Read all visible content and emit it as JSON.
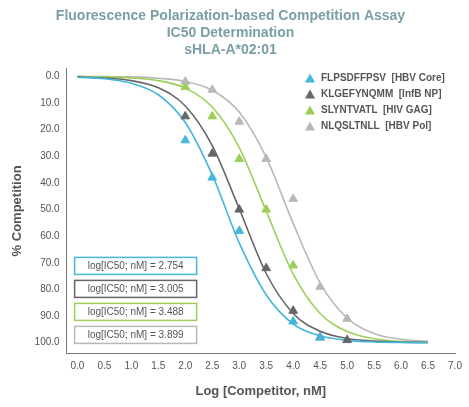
{
  "chart_data": {
    "type": "scatter",
    "title": [
      "Fluorescence Polarization-based Competition Assay",
      "IC50 Determination",
      "sHLA-A*02:01"
    ],
    "x_label": "Log [Competitor, nM]",
    "y_label": "% Competition",
    "xlim": [
      -0.2,
      7.0
    ],
    "xticks": [
      {
        "value": 0,
        "label": "0.0"
      },
      {
        "value": 0.5,
        "label": "0.5"
      },
      {
        "value": 1,
        "label": "1.0"
      },
      {
        "value": 1.5,
        "label": "1.5"
      },
      {
        "value": 2,
        "label": "2.0"
      },
      {
        "value": 2.5,
        "label": "2.5"
      },
      {
        "value": 3,
        "label": "3.0"
      },
      {
        "value": 3.5,
        "label": "3.5"
      },
      {
        "value": 4,
        "label": "4.0"
      },
      {
        "value": 4.5,
        "label": "4.5"
      },
      {
        "value": 5,
        "label": "5.0"
      },
      {
        "value": 5.5,
        "label": "5.5"
      },
      {
        "value": 6,
        "label": "6.0"
      },
      {
        "value": 6.5,
        "label": "6.5"
      },
      {
        "value": 7,
        "label": "7.0"
      }
    ],
    "ylim": [
      -3,
      104
    ],
    "y_reversed": true,
    "yticks": [
      {
        "value": 0,
        "label": "0.0"
      },
      {
        "value": 10,
        "label": "10.0"
      },
      {
        "value": 20,
        "label": "20.0"
      },
      {
        "value": 30,
        "label": "30.0"
      },
      {
        "value": 40,
        "label": "40.0"
      },
      {
        "value": 50,
        "label": "50.0"
      },
      {
        "value": 60,
        "label": "60.0"
      },
      {
        "value": 70,
        "label": "70.0"
      },
      {
        "value": 80,
        "label": "80.0"
      },
      {
        "value": 90,
        "label": "90.0"
      },
      {
        "value": 100,
        "label": "100.0"
      }
    ],
    "grid": false,
    "legend": "top-right",
    "series": [
      {
        "name": "FLPSDFFPSV  [HBV Core]",
        "color": "#45b6dc",
        "marker": "triangle",
        "line_style": "solid",
        "x": [
          2.0,
          2.5,
          3.0,
          4.0,
          4.5
        ],
        "values": [
          24,
          38,
          58,
          92,
          98
        ],
        "curve": {
          "x": [
            0,
            0.5,
            1,
            1.5,
            2,
            2.5,
            3,
            3.5,
            4,
            4.5,
            5,
            5.5,
            6,
            6.5
          ],
          "values": [
            0.3,
            0.9,
            2.6,
            6.9,
            17.3,
            37,
            62.5,
            82,
            93,
            97.4,
            99.1,
            99.7,
            99.9,
            100
          ]
        },
        "ic50_label": "log[IC50; nM] = 2.754"
      },
      {
        "name": "KLGEFYNQMM  [InfB NP]",
        "color": "#666666",
        "marker": "triangle",
        "line_style": "solid",
        "x": [
          2.0,
          2.5,
          3.0,
          3.5,
          4.0,
          4.5,
          5.0
        ],
        "values": [
          15,
          29,
          50,
          72,
          88,
          98,
          99
        ],
        "curve": {
          "x": [
            0,
            0.5,
            1,
            1.5,
            2,
            2.5,
            3,
            3.5,
            4,
            4.5,
            5,
            5.5,
            6,
            6.5
          ],
          "values": [
            0.2,
            0.6,
            1.6,
            4.3,
            11.1,
            26,
            49.7,
            74,
            89,
            95.7,
            98.4,
            99.4,
            99.8,
            99.9
          ]
        },
        "ic50_label": "log[IC50; nM] = 3.005"
      },
      {
        "name": "SLYNTVATL  [HIV GAG]",
        "color": "#9ccf5a",
        "marker": "triangle",
        "line_style": "solid",
        "x": [
          2.0,
          2.5,
          3.0,
          3.5,
          4.0
        ],
        "values": [
          4,
          15,
          31,
          50,
          71
        ],
        "curve": {
          "x": [
            0,
            0.5,
            1,
            1.5,
            2,
            2.5,
            3,
            3.5,
            4,
            4.5,
            5,
            5.5,
            6,
            6.5
          ],
          "values": [
            0.1,
            0.2,
            0.6,
            1.6,
            4.4,
            11.5,
            26.7,
            50.6,
            74.2,
            89,
            95.8,
            98.5,
            99.5,
            99.8
          ]
        },
        "ic50_label": "log[IC50; nM] = 3.488"
      },
      {
        "name": "NLQSLTNLL  [HBV Pol]",
        "color": "#b8b8b8",
        "marker": "triangle",
        "line_style": "solid",
        "x": [
          2.0,
          2.5,
          3.0,
          3.5,
          4.0,
          4.5,
          5.0
        ],
        "values": [
          2,
          5,
          17,
          31,
          46,
          79,
          91
        ],
        "curve": {
          "x": [
            0,
            0.5,
            1,
            1.5,
            2,
            2.5,
            3,
            3.5,
            4,
            4.5,
            5,
            5.5,
            6,
            6.5
          ],
          "values": [
            0,
            0.1,
            0.2,
            0.7,
            1.9,
            5.2,
            13.4,
            30.4,
            55.2,
            77.6,
            90.7,
            96.5,
            98.7,
            99.5
          ]
        },
        "ic50_label": "log[IC50; nM] = 3.899"
      }
    ]
  }
}
